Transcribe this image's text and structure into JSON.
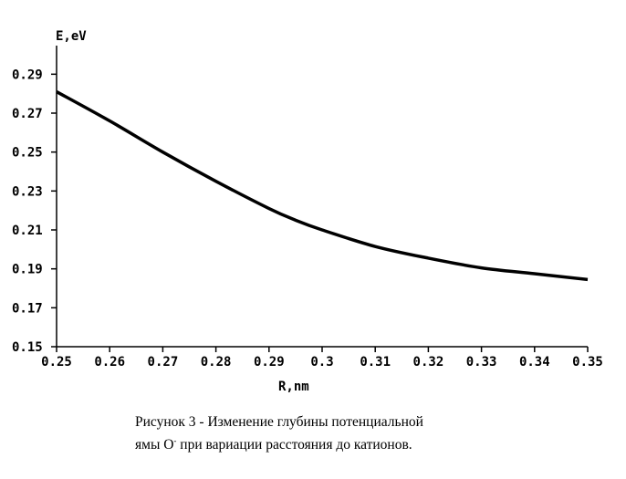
{
  "chart_data": {
    "type": "line",
    "title": "",
    "xlabel": "R,nm",
    "ylabel": "E,eV",
    "xlim": [
      0.25,
      0.35
    ],
    "ylim": [
      0.15,
      0.3
    ],
    "x_ticks": [
      "0.25",
      "0.26",
      "0.27",
      "0.28",
      "0.29",
      "0.3",
      "0.31",
      "0.32",
      "0.33",
      "0.34",
      "0.35"
    ],
    "y_ticks": [
      "0.15",
      "0.17",
      "0.19",
      "0.21",
      "0.23",
      "0.25",
      "0.27",
      "0.29"
    ],
    "grid": false,
    "series": [
      {
        "name": "",
        "color": "#000000",
        "x": [
          0.25,
          0.26,
          0.27,
          0.28,
          0.29,
          0.295,
          0.3,
          0.31,
          0.32,
          0.33,
          0.34,
          0.35
        ],
        "y": [
          0.281,
          0.266,
          0.25,
          0.235,
          0.221,
          0.215,
          0.21,
          0.2015,
          0.1955,
          0.1905,
          0.1875,
          0.1845
        ]
      }
    ]
  },
  "caption": {
    "line1": "Рисунок 3  -  Изменение  глубины  потенциальной",
    "line2_prefix": "ямы O",
    "line2_sup": "-",
    "line2_suffix": " при вариации расстояния до катионов."
  }
}
